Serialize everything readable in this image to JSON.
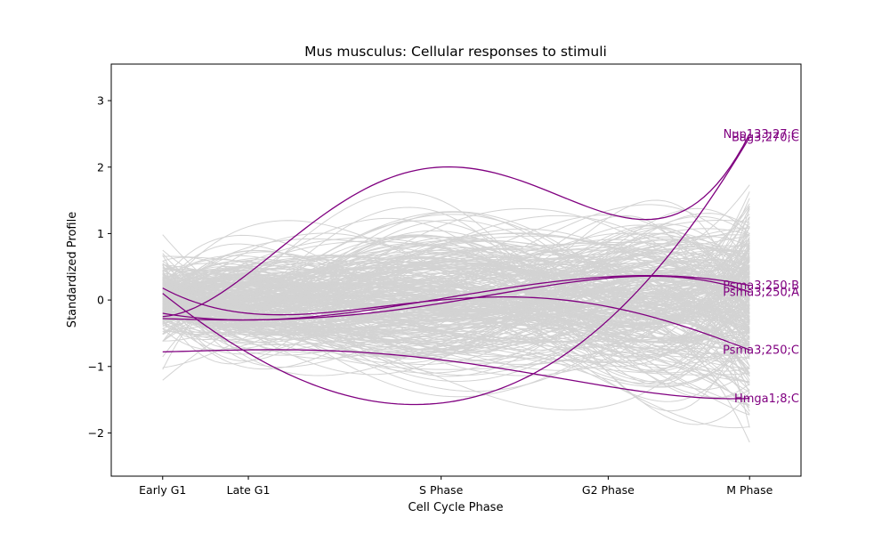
{
  "chart_data": {
    "type": "line",
    "title": "Mus musculus: Cellular responses to stimuli",
    "xlabel": "Cell Cycle Phase",
    "ylabel": "Standardized Profile",
    "categories": [
      "Early G1",
      "Late G1",
      "S Phase",
      "G2 Phase",
      "M Phase"
    ],
    "x_positions": [
      0,
      1,
      3.25,
      5.2,
      6.85
    ],
    "xlim": [
      -0.6,
      7.45
    ],
    "ylim": [
      -2.65,
      3.55
    ],
    "yticks": [
      -2,
      -1,
      0,
      1,
      2,
      3
    ],
    "grid": false,
    "colors": {
      "background_series": "#d3d3d3",
      "highlight": "#800080"
    },
    "background_series_count": 300,
    "highlighted_series": [
      {
        "name": "Nup133;27;C",
        "values": [
          -0.25,
          0.4,
          2.0,
          1.3,
          2.5
        ]
      },
      {
        "name": "Psma3;250;B",
        "values": [
          -0.2,
          -0.3,
          0.02,
          0.35,
          0.22
        ]
      },
      {
        "name": "Psma3;250;A",
        "values": [
          -0.28,
          -0.3,
          -0.05,
          0.33,
          0.12
        ]
      },
      {
        "name": "Psma3;250;C",
        "values": [
          0.18,
          -0.2,
          0.0,
          -0.1,
          -0.75
        ]
      },
      {
        "name": "Bag3;270;C",
        "values": [
          0.1,
          -0.8,
          -1.55,
          -0.3,
          2.45
        ]
      },
      {
        "name": "Hmga1;8;C",
        "values": [
          -0.78,
          -0.75,
          -0.9,
          -1.3,
          -1.48
        ]
      }
    ]
  }
}
